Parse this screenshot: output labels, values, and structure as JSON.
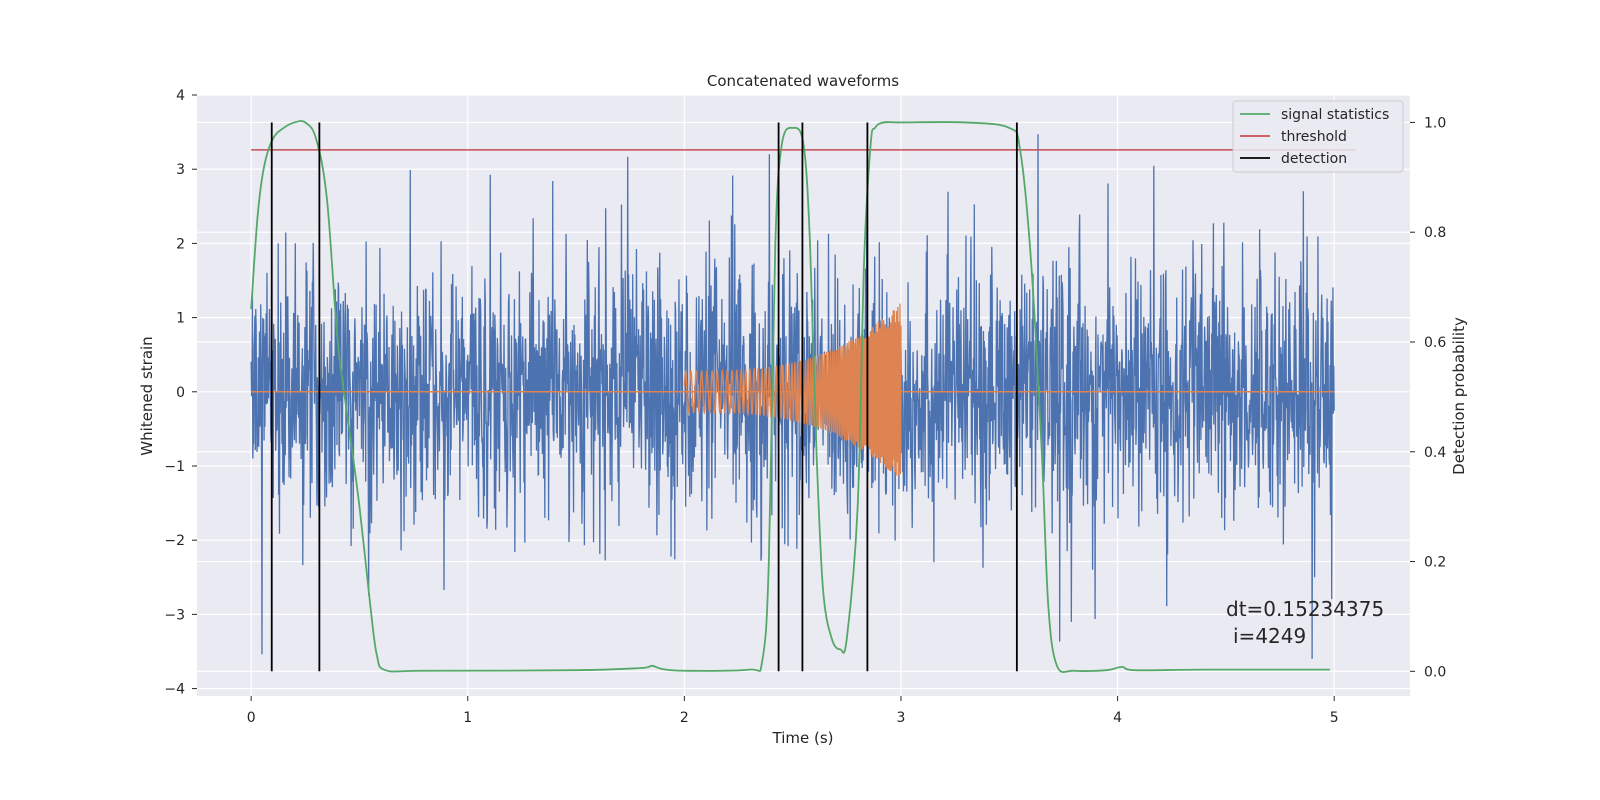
{
  "chart_data": {
    "type": "line",
    "title": "Concatenated waveforms",
    "xlabel": "Time (s)",
    "ylabel": "Whitened strain",
    "y2label": "Detection probability",
    "xlim": [
      -0.25,
      5.35
    ],
    "ylim": [
      -4.1,
      4.0
    ],
    "y2lim": [
      -0.045,
      1.05
    ],
    "x_ticks": [
      0,
      1,
      2,
      3,
      4,
      5
    ],
    "x_tick_labels": [
      "0",
      "1",
      "2",
      "3",
      "4",
      "5"
    ],
    "y_ticks": [
      -4,
      -3,
      -2,
      -1,
      0,
      1,
      2,
      3,
      4
    ],
    "y_tick_labels": [
      "−4",
      "−3",
      "−2",
      "−1",
      "0",
      "1",
      "2",
      "3",
      "4"
    ],
    "y2_ticks": [
      0.0,
      0.2,
      0.4,
      0.6,
      0.8,
      1.0
    ],
    "y2_tick_labels": [
      "0.0",
      "0.2",
      "0.4",
      "0.6",
      "0.8",
      "1.0"
    ],
    "grid": true,
    "legend_position": "top-right",
    "colors": {
      "noisy_strain": "#4c72b0",
      "injected_signal": "#dd8452",
      "signal_statistics": "#55a868",
      "threshold": "#c44e52",
      "detection": "#000000",
      "plot_background": "#eaeaf2",
      "grid": "#ffffff"
    },
    "series": [
      {
        "name": "",
        "axis": "left",
        "kind": "noise",
        "x_range": [
          0,
          5
        ],
        "typical_amplitude": 1.6,
        "max_abs": 3.6
      },
      {
        "name": "",
        "axis": "left",
        "kind": "chirp",
        "x_range": [
          0,
          5
        ],
        "chirp_start": 2.0,
        "chirp_end": 3.0,
        "start_amplitude": 0.28,
        "end_amplitude": 1.2
      },
      {
        "name": "signal statistics",
        "axis": "right",
        "x": [
          0.0,
          0.03,
          0.06,
          0.1,
          0.15,
          0.2,
          0.25,
          0.3,
          0.35,
          0.4,
          0.45,
          0.5,
          0.55,
          0.58,
          0.62,
          0.8,
          1.5,
          1.8,
          1.85,
          1.9,
          2.0,
          2.3,
          2.36,
          2.39,
          2.42,
          2.45,
          2.5,
          2.55,
          2.58,
          2.61,
          2.64,
          2.68,
          2.72,
          2.75,
          2.8,
          2.83,
          2.86,
          2.88,
          2.92,
          3.0,
          3.3,
          3.5,
          3.55,
          3.6,
          3.65,
          3.68,
          3.72,
          3.8,
          3.95,
          4.02,
          4.08,
          4.4,
          4.98
        ],
        "values": [
          0.66,
          0.83,
          0.92,
          0.97,
          0.99,
          1.0,
          1.0,
          0.97,
          0.86,
          0.6,
          0.45,
          0.3,
          0.12,
          0.03,
          0.002,
          0.001,
          0.002,
          0.006,
          0.01,
          0.004,
          0.001,
          0.003,
          0.02,
          0.2,
          0.78,
          0.96,
          0.99,
          0.96,
          0.78,
          0.4,
          0.15,
          0.06,
          0.04,
          0.06,
          0.3,
          0.75,
          0.96,
          0.99,
          1.0,
          1.0,
          1.0,
          0.99,
          0.95,
          0.75,
          0.4,
          0.12,
          0.01,
          0.001,
          0.002,
          0.008,
          0.002,
          0.003,
          0.003
        ]
      },
      {
        "name": "threshold",
        "axis": "right",
        "x": [
          0,
          5.1
        ],
        "values": [
          0.95,
          0.95
        ]
      },
      {
        "name": "detection",
        "axis": "right",
        "kind": "vlines",
        "x": [
          0.095,
          0.315,
          2.435,
          2.545,
          2.845,
          3.535
        ],
        "y_range": [
          0.0,
          1.0
        ]
      }
    ],
    "annotations": [
      {
        "x": 4.5,
        "y": -3.0,
        "text": "dt=0.15234375"
      },
      {
        "x": 4.53,
        "y": -3.36,
        "text": "i=4249"
      }
    ]
  }
}
